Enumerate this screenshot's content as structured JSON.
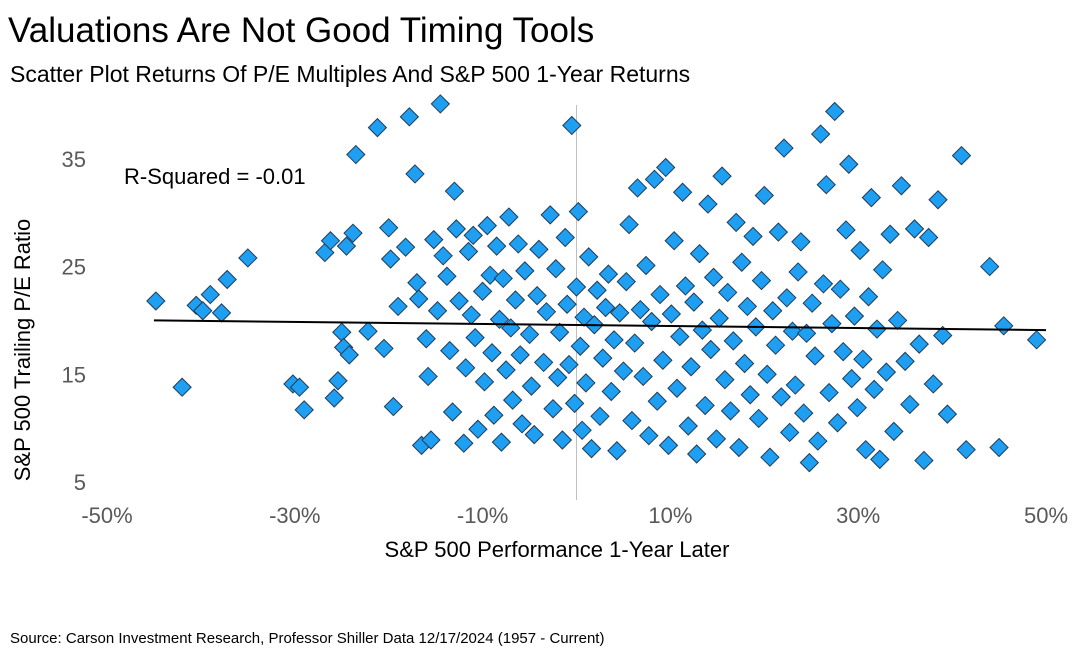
{
  "header": {
    "title": "Valuations Are Not Good Timing Tools",
    "subtitle": "Scatter Plot Returns Of P/E Multiples And S&P 500 1-Year Returns"
  },
  "footer": {
    "source": "Source: Carson Investment Research, Professor Shiller Data 12/17/2024 (1957 - Current)"
  },
  "colors": {
    "marker_fill": "#1e9ff2",
    "marker_stroke": "#1f3c57",
    "trend_line": "#000000",
    "zero_line": "#bfbfbf"
  },
  "chart_data": {
    "type": "scatter",
    "title": "Valuations Are Not Good Timing Tools",
    "subtitle": "Scatter Plot Returns Of P/E Multiples And S&P 500 1-Year Returns",
    "xlabel": "S&P 500 Performance 1-Year Later",
    "ylabel": "S&P 500 Trailing P/E Ratio",
    "xlim": [
      -0.5,
      0.5
    ],
    "ylim": [
      5,
      40
    ],
    "x_ticks": [
      -0.5,
      -0.3,
      -0.1,
      0.1,
      0.3,
      0.5
    ],
    "x_tick_labels": [
      "-50%",
      "-30%",
      "-10%",
      "10%",
      "30%",
      "50%"
    ],
    "y_ticks": [
      5,
      15,
      25,
      35
    ],
    "y_tick_labels": [
      "5",
      "15",
      "25",
      "35"
    ],
    "grid": false,
    "annotation": "R-Squared = -0.01",
    "trendline": {
      "x": [
        -0.45,
        0.5
      ],
      "y": [
        20.0,
        19.1
      ]
    },
    "marker": "diamond",
    "series": [
      {
        "points": [
          [
            -0.448,
            21.8
          ],
          [
            -0.42,
            13.8
          ],
          [
            -0.405,
            21.4
          ],
          [
            -0.398,
            20.9
          ],
          [
            -0.39,
            22.4
          ],
          [
            -0.378,
            20.7
          ],
          [
            -0.372,
            23.8
          ],
          [
            -0.35,
            25.8
          ],
          [
            -0.302,
            14.1
          ],
          [
            -0.295,
            13.8
          ],
          [
            -0.29,
            11.7
          ],
          [
            -0.268,
            26.3
          ],
          [
            -0.262,
            27.4
          ],
          [
            -0.258,
            12.8
          ],
          [
            -0.254,
            14.4
          ],
          [
            -0.25,
            18.9
          ],
          [
            -0.248,
            17.5
          ],
          [
            -0.245,
            26.9
          ],
          [
            -0.242,
            16.8
          ],
          [
            -0.238,
            28.1
          ],
          [
            -0.235,
            35.4
          ],
          [
            -0.222,
            19.0
          ],
          [
            -0.212,
            37.9
          ],
          [
            -0.205,
            17.4
          ],
          [
            -0.2,
            28.6
          ],
          [
            -0.198,
            25.7
          ],
          [
            -0.195,
            12.0
          ],
          [
            -0.19,
            21.3
          ],
          [
            -0.182,
            26.8
          ],
          [
            -0.178,
            38.9
          ],
          [
            -0.172,
            33.6
          ],
          [
            -0.17,
            23.5
          ],
          [
            -0.168,
            22.0
          ],
          [
            -0.165,
            8.4
          ],
          [
            -0.16,
            18.3
          ],
          [
            -0.158,
            14.8
          ],
          [
            -0.155,
            8.9
          ],
          [
            -0.152,
            27.5
          ],
          [
            -0.148,
            20.9
          ],
          [
            -0.145,
            40.1
          ],
          [
            -0.142,
            26.0
          ],
          [
            -0.138,
            24.1
          ],
          [
            -0.135,
            17.2
          ],
          [
            -0.132,
            11.5
          ],
          [
            -0.13,
            32.0
          ],
          [
            -0.128,
            28.5
          ],
          [
            -0.125,
            21.8
          ],
          [
            -0.12,
            8.6
          ],
          [
            -0.118,
            15.6
          ],
          [
            -0.115,
            26.4
          ],
          [
            -0.112,
            20.5
          ],
          [
            -0.11,
            27.9
          ],
          [
            -0.108,
            18.4
          ],
          [
            -0.105,
            9.9
          ],
          [
            -0.1,
            22.7
          ],
          [
            -0.098,
            14.3
          ],
          [
            -0.095,
            28.8
          ],
          [
            -0.092,
            24.2
          ],
          [
            -0.09,
            17.0
          ],
          [
            -0.088,
            11.2
          ],
          [
            -0.085,
            26.9
          ],
          [
            -0.082,
            20.1
          ],
          [
            -0.08,
            8.7
          ],
          [
            -0.078,
            23.9
          ],
          [
            -0.075,
            15.4
          ],
          [
            -0.072,
            29.6
          ],
          [
            -0.07,
            19.3
          ],
          [
            -0.068,
            12.6
          ],
          [
            -0.065,
            21.9
          ],
          [
            -0.062,
            27.1
          ],
          [
            -0.06,
            16.8
          ],
          [
            -0.058,
            10.4
          ],
          [
            -0.055,
            24.6
          ],
          [
            -0.05,
            18.7
          ],
          [
            -0.048,
            13.9
          ],
          [
            -0.045,
            9.4
          ],
          [
            -0.042,
            22.3
          ],
          [
            -0.04,
            26.6
          ],
          [
            -0.035,
            16.1
          ],
          [
            -0.032,
            20.8
          ],
          [
            -0.028,
            29.8
          ],
          [
            -0.025,
            11.8
          ],
          [
            -0.022,
            24.8
          ],
          [
            -0.02,
            14.7
          ],
          [
            -0.018,
            18.9
          ],
          [
            -0.015,
            8.9
          ],
          [
            -0.012,
            27.7
          ],
          [
            -0.01,
            21.5
          ],
          [
            -0.008,
            15.9
          ],
          [
            -0.005,
            38.1
          ],
          [
            -0.002,
            12.3
          ],
          [
            0.0,
            23.1
          ],
          [
            0.002,
            30.1
          ],
          [
            0.004,
            17.6
          ],
          [
            0.006,
            9.8
          ],
          [
            0.008,
            20.3
          ],
          [
            0.01,
            14.2
          ],
          [
            0.013,
            25.9
          ],
          [
            0.016,
            8.1
          ],
          [
            0.019,
            19.6
          ],
          [
            0.022,
            22.8
          ],
          [
            0.025,
            11.1
          ],
          [
            0.028,
            16.5
          ],
          [
            0.031,
            21.2
          ],
          [
            0.034,
            24.3
          ],
          [
            0.037,
            13.4
          ],
          [
            0.04,
            18.2
          ],
          [
            0.043,
            7.9
          ],
          [
            0.046,
            20.7
          ],
          [
            0.05,
            15.3
          ],
          [
            0.053,
            23.6
          ],
          [
            0.056,
            28.9
          ],
          [
            0.059,
            10.7
          ],
          [
            0.062,
            17.9
          ],
          [
            0.065,
            32.3
          ],
          [
            0.068,
            21.0
          ],
          [
            0.071,
            14.8
          ],
          [
            0.074,
            25.1
          ],
          [
            0.077,
            9.3
          ],
          [
            0.08,
            19.9
          ],
          [
            0.083,
            33.1
          ],
          [
            0.086,
            12.5
          ],
          [
            0.089,
            22.4
          ],
          [
            0.092,
            16.3
          ],
          [
            0.095,
            34.2
          ],
          [
            0.098,
            8.4
          ],
          [
            0.101,
            20.6
          ],
          [
            0.104,
            27.4
          ],
          [
            0.107,
            13.7
          ],
          [
            0.11,
            18.5
          ],
          [
            0.113,
            31.9
          ],
          [
            0.116,
            23.2
          ],
          [
            0.119,
            10.2
          ],
          [
            0.122,
            15.7
          ],
          [
            0.125,
            21.7
          ],
          [
            0.128,
            7.6
          ],
          [
            0.131,
            26.2
          ],
          [
            0.134,
            19.1
          ],
          [
            0.137,
            12.1
          ],
          [
            0.14,
            30.8
          ],
          [
            0.143,
            17.3
          ],
          [
            0.146,
            24.0
          ],
          [
            0.149,
            9.0
          ],
          [
            0.152,
            20.2
          ],
          [
            0.155,
            33.4
          ],
          [
            0.158,
            14.5
          ],
          [
            0.161,
            22.6
          ],
          [
            0.164,
            11.6
          ],
          [
            0.167,
            18.1
          ],
          [
            0.17,
            29.1
          ],
          [
            0.173,
            8.2
          ],
          [
            0.176,
            25.4
          ],
          [
            0.179,
            16.0
          ],
          [
            0.182,
            21.3
          ],
          [
            0.185,
            13.1
          ],
          [
            0.188,
            27.8
          ],
          [
            0.191,
            19.4
          ],
          [
            0.194,
            10.9
          ],
          [
            0.197,
            23.7
          ],
          [
            0.2,
            31.6
          ],
          [
            0.203,
            15.0
          ],
          [
            0.206,
            7.3
          ],
          [
            0.209,
            20.9
          ],
          [
            0.212,
            17.7
          ],
          [
            0.215,
            28.2
          ],
          [
            0.218,
            12.9
          ],
          [
            0.221,
            36.0
          ],
          [
            0.224,
            22.1
          ],
          [
            0.227,
            9.6
          ],
          [
            0.23,
            19.0
          ],
          [
            0.233,
            14.0
          ],
          [
            0.236,
            24.5
          ],
          [
            0.239,
            27.3
          ],
          [
            0.242,
            11.4
          ],
          [
            0.245,
            18.8
          ],
          [
            0.248,
            6.8
          ],
          [
            0.251,
            21.6
          ],
          [
            0.254,
            16.7
          ],
          [
            0.257,
            8.8
          ],
          [
            0.26,
            37.3
          ],
          [
            0.263,
            23.4
          ],
          [
            0.266,
            32.6
          ],
          [
            0.269,
            13.3
          ],
          [
            0.272,
            19.7
          ],
          [
            0.275,
            39.4
          ],
          [
            0.278,
            10.5
          ],
          [
            0.281,
            22.9
          ],
          [
            0.284,
            17.1
          ],
          [
            0.287,
            28.4
          ],
          [
            0.29,
            34.5
          ],
          [
            0.293,
            14.6
          ],
          [
            0.296,
            20.4
          ],
          [
            0.299,
            11.9
          ],
          [
            0.302,
            26.5
          ],
          [
            0.305,
            16.4
          ],
          [
            0.308,
            8.0
          ],
          [
            0.311,
            22.2
          ],
          [
            0.314,
            31.4
          ],
          [
            0.317,
            13.6
          ],
          [
            0.32,
            19.2
          ],
          [
            0.323,
            7.1
          ],
          [
            0.326,
            24.7
          ],
          [
            0.33,
            15.2
          ],
          [
            0.334,
            28.0
          ],
          [
            0.338,
            9.7
          ],
          [
            0.342,
            20.0
          ],
          [
            0.346,
            32.5
          ],
          [
            0.35,
            16.2
          ],
          [
            0.355,
            12.2
          ],
          [
            0.36,
            28.5
          ],
          [
            0.365,
            17.8
          ],
          [
            0.37,
            7.0
          ],
          [
            0.375,
            27.7
          ],
          [
            0.38,
            14.1
          ],
          [
            0.385,
            31.2
          ],
          [
            0.39,
            18.6
          ],
          [
            0.395,
            11.3
          ],
          [
            0.41,
            35.3
          ],
          [
            0.415,
            8.0
          ],
          [
            0.44,
            25.0
          ],
          [
            0.45,
            8.2
          ],
          [
            0.455,
            19.5
          ],
          [
            0.49,
            18.2
          ]
        ]
      }
    ]
  }
}
